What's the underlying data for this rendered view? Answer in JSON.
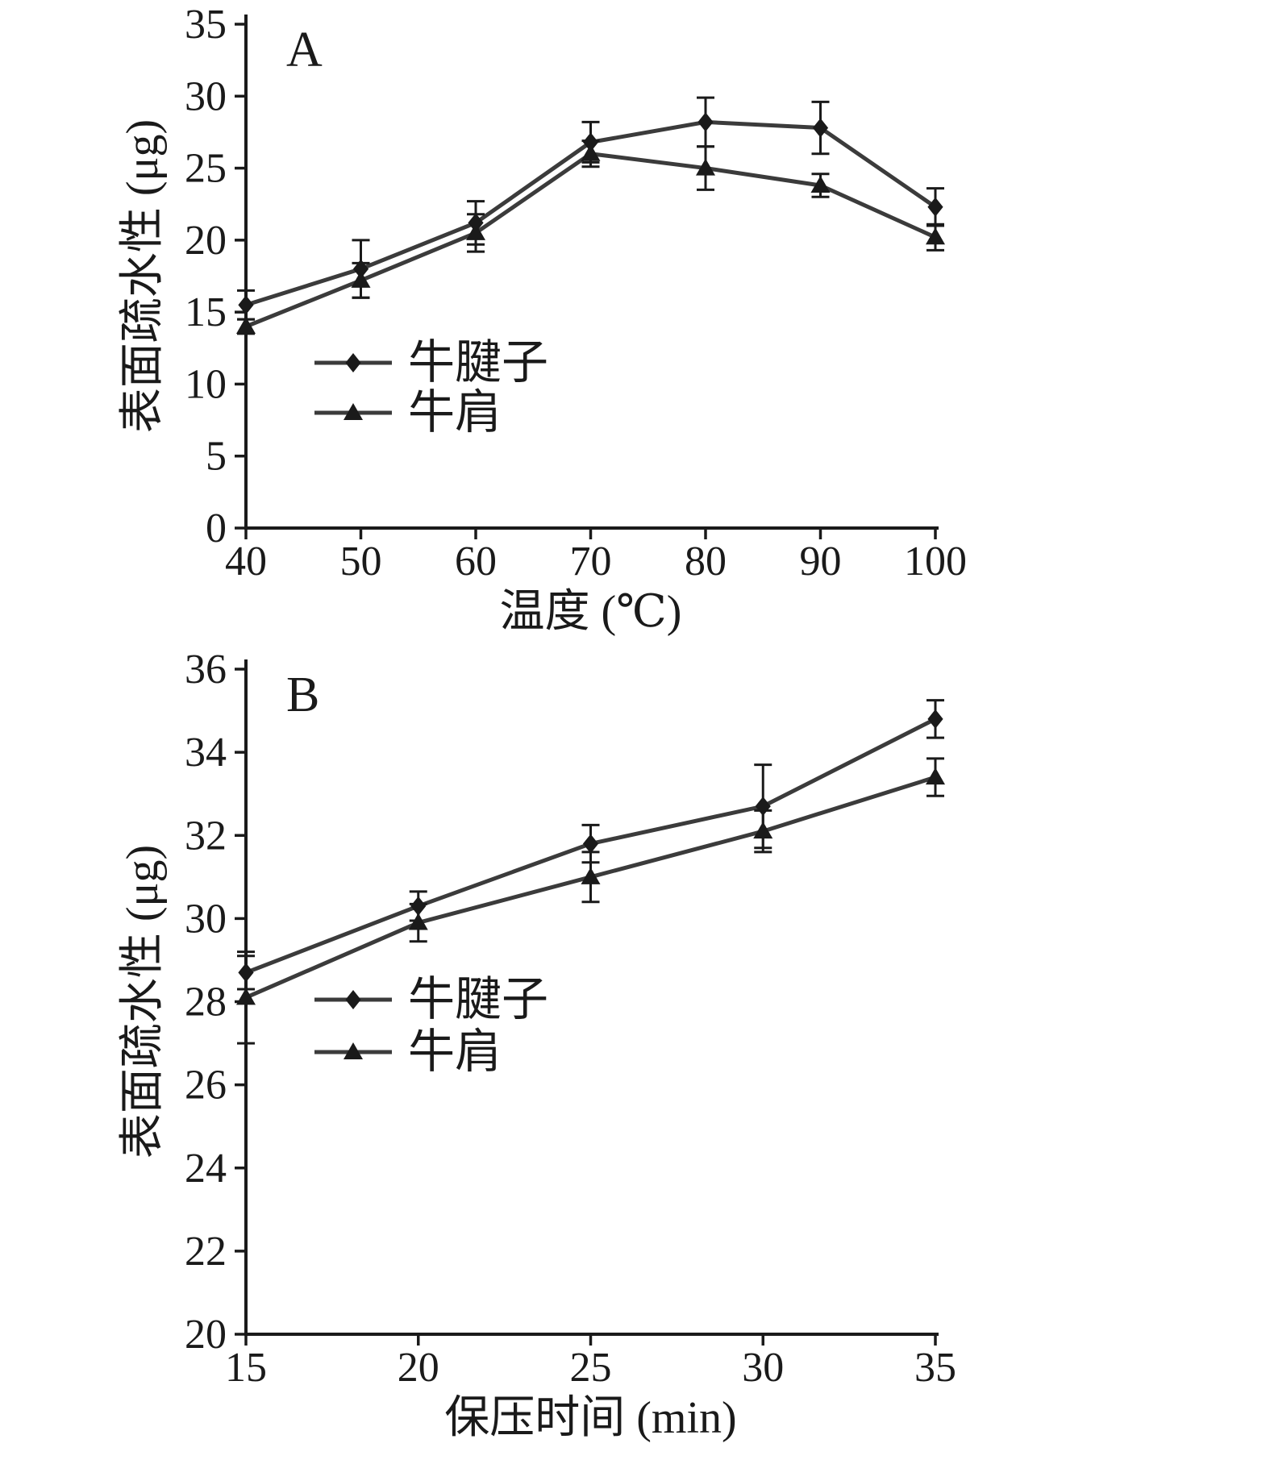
{
  "colors": {
    "line": "#3b3b3b",
    "marker": "#1a1a1a",
    "axis": "#1a1a1a",
    "text": "#1a1a1a",
    "background": "#ffffff"
  },
  "chart_data": [
    {
      "type": "line",
      "panel_label": "A",
      "xlabel": "温度 (℃)",
      "ylabel": "表面疏水性 (μg)",
      "xlim": [
        40,
        100
      ],
      "ylim": [
        0,
        35
      ],
      "xticks": [
        40,
        50,
        60,
        70,
        80,
        90,
        100
      ],
      "yticks": [
        0,
        5,
        10,
        15,
        20,
        25,
        30,
        35
      ],
      "x": [
        40,
        50,
        60,
        70,
        80,
        90,
        100
      ],
      "series": [
        {
          "name": "牛腱子",
          "marker": "diamond",
          "values": [
            15.5,
            18.0,
            21.2,
            26.8,
            28.2,
            27.8,
            22.3
          ],
          "errors": [
            1.0,
            2.0,
            1.5,
            1.4,
            1.7,
            1.8,
            1.3
          ]
        },
        {
          "name": "牛肩",
          "marker": "triangle",
          "values": [
            14.0,
            17.2,
            20.5,
            26.0,
            25.0,
            23.8,
            20.2
          ],
          "errors": [
            0.5,
            1.2,
            1.3,
            0.9,
            1.5,
            0.8,
            0.9
          ]
        }
      ],
      "legend_position": "inside-lower-left",
      "grid": false
    },
    {
      "type": "line",
      "panel_label": "B",
      "xlabel": "保压时间 (min)",
      "ylabel": "表面疏水性 (μg)",
      "xlim": [
        15,
        35
      ],
      "ylim": [
        20,
        36
      ],
      "xticks": [
        15,
        20,
        25,
        30,
        35
      ],
      "yticks": [
        20,
        22,
        24,
        26,
        28,
        30,
        32,
        34,
        36
      ],
      "x": [
        15,
        20,
        25,
        30,
        35
      ],
      "series": [
        {
          "name": "牛腱子",
          "marker": "diamond",
          "values": [
            28.7,
            30.3,
            31.8,
            32.7,
            34.8
          ],
          "errors": [
            0.4,
            0.35,
            0.45,
            1.0,
            0.45
          ]
        },
        {
          "name": "牛肩",
          "marker": "triangle",
          "values": [
            28.1,
            29.9,
            31.0,
            32.1,
            33.4
          ],
          "errors": [
            1.1,
            0.45,
            0.6,
            0.5,
            0.45
          ]
        }
      ],
      "legend_position": "inside-lower-left",
      "grid": false
    }
  ]
}
